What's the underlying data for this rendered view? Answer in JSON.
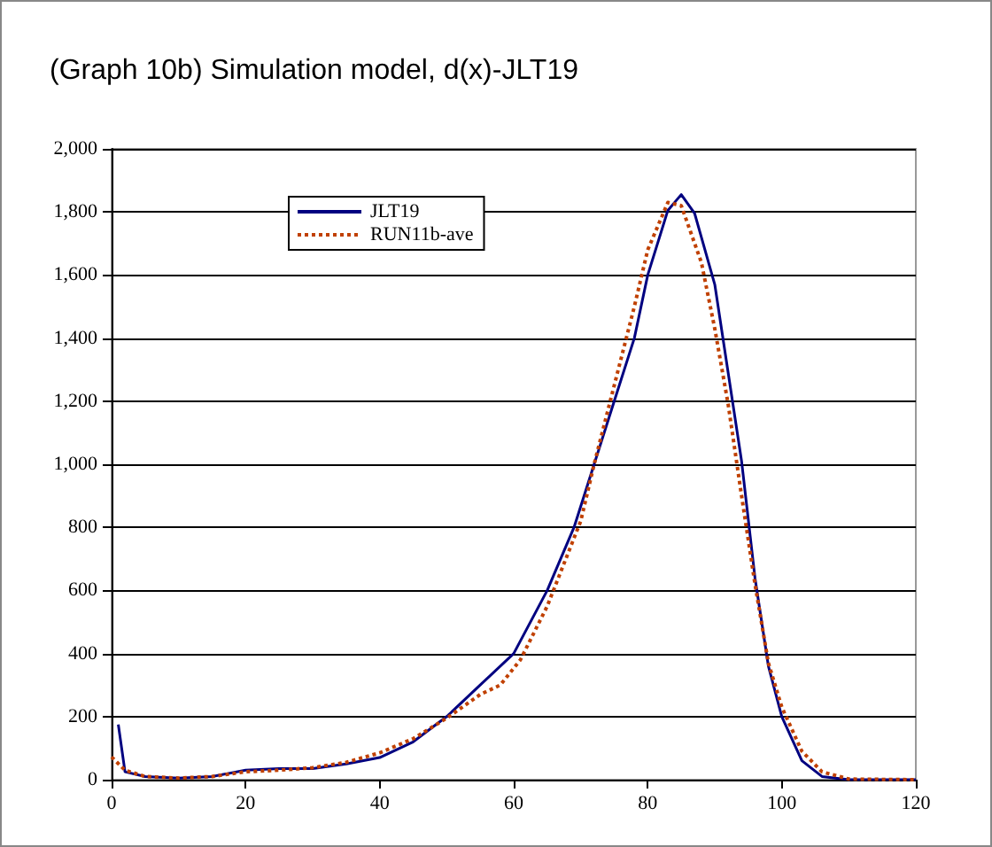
{
  "chart_data": {
    "type": "line",
    "title": "(Graph 10b) Simulation model, d(x)-JLT19",
    "xlim": [
      0,
      120
    ],
    "xticks": [
      0,
      20,
      40,
      60,
      80,
      100,
      120
    ],
    "ylim": [
      0,
      2000
    ],
    "yticks": [
      0,
      200,
      400,
      600,
      800,
      {
        "value": 1000,
        "label": "1,000"
      },
      {
        "value": 1200,
        "label": "1,200"
      },
      {
        "value": 1400,
        "label": "1,400"
      },
      {
        "value": 1600,
        "label": "1,600"
      },
      {
        "value": 1800,
        "label": "1,800"
      },
      {
        "value": 2000,
        "label": "2,000"
      }
    ],
    "grid": "y",
    "legend": "top left",
    "marker": "none",
    "series": [
      {
        "name": "JLT19",
        "color": "#000080",
        "line_style": "solid",
        "x": [
          1,
          2,
          5,
          10,
          15,
          20,
          25,
          30,
          35,
          40,
          45,
          50,
          55,
          60,
          65,
          69,
          72,
          75,
          78,
          80,
          83,
          85,
          87,
          90,
          92,
          94,
          96,
          98,
          100,
          103,
          106,
          110,
          120
        ],
        "values": [
          175,
          25,
          10,
          5,
          10,
          30,
          35,
          35,
          50,
          70,
          120,
          200,
          300,
          400,
          600,
          800,
          1000,
          1200,
          1400,
          1600,
          1805,
          1855,
          1795,
          1570,
          1290,
          1010,
          640,
          360,
          200,
          60,
          10,
          0,
          0
        ]
      },
      {
        "name": "RUN11b-ave",
        "color": "#c04000",
        "line_style": "dotted",
        "x": [
          0,
          2,
          5,
          10,
          15,
          20,
          25,
          30,
          35,
          40,
          45,
          50,
          55,
          58,
          61,
          65,
          70,
          72,
          75,
          78,
          80,
          83,
          85,
          88,
          90,
          92,
          94,
          96,
          98,
          100,
          103,
          106,
          110,
          120
        ],
        "values": [
          72,
          30,
          10,
          5,
          10,
          25,
          30,
          38,
          55,
          85,
          130,
          195,
          270,
          300,
          380,
          550,
          820,
          1000,
          1250,
          1500,
          1680,
          1830,
          1820,
          1640,
          1430,
          1190,
          900,
          620,
          370,
          230,
          90,
          25,
          2,
          0
        ]
      }
    ]
  }
}
